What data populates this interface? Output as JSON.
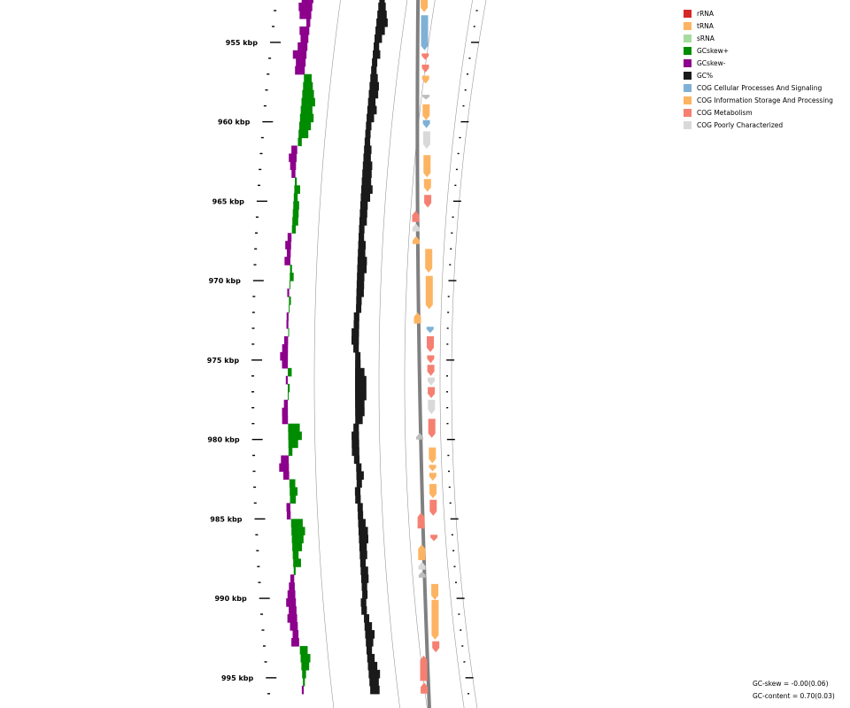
{
  "colors": {
    "rRNA": "#d62728",
    "tRNA": "#fdb462",
    "sRNA": "#a6dba0",
    "gcskew_plus": "#008c00",
    "gcskew_minus": "#8c008c",
    "gc": "#1a1a1a",
    "cog_cellular": "#7fb1d6",
    "cog_information": "#fdb462",
    "cog_metabolism": "#f58072",
    "cog_poor": "#d9d9d9",
    "unknown": "#bdbdbd",
    "backbone": "#808080",
    "guide": "#999999"
  },
  "legend": [
    {
      "label": "rRNA",
      "color": "#d62728"
    },
    {
      "label": "tRNA",
      "color": "#fdb462"
    },
    {
      "label": "sRNA",
      "color": "#a6dba0"
    },
    {
      "label": "GCskew+",
      "color": "#008c00"
    },
    {
      "label": "GCskew-",
      "color": "#8c008c"
    },
    {
      "label": "GC%",
      "color": "#1a1a1a"
    },
    {
      "label": "COG Cellular Processes And Signaling",
      "color": "#7fb1d6"
    },
    {
      "label": "COG Information Storage And Processing",
      "color": "#fdb462"
    },
    {
      "label": "COG Metabolism",
      "color": "#f58072"
    },
    {
      "label": "COG Poorly Characterized",
      "color": "#d9d9d9"
    }
  ],
  "stats": {
    "gc_skew": "GC-skew = -0.00(0.06)",
    "gc_content": "GC-content = 0.70(0.03)"
  },
  "chart_data": {
    "type": "genome-map",
    "position_range_kbp": [
      952,
      996
    ],
    "major_ticks_kbp": [
      955,
      960,
      965,
      970,
      975,
      980,
      985,
      990,
      995
    ],
    "tick_labels": [
      "955 kbp",
      "960 kbp",
      "965 kbp",
      "970 kbp",
      "975 kbp",
      "980 kbp",
      "985 kbp",
      "990 kbp",
      "995 kbp"
    ],
    "gc_skew_kbp": [
      952.0,
      952.5,
      953.0,
      953.5,
      954.0,
      954.5,
      955.0,
      955.5,
      956.0,
      956.5,
      957.0,
      957.5,
      958.0,
      958.5,
      959.0,
      959.5,
      960.0,
      960.5,
      961.0,
      961.5,
      962.0,
      962.5,
      963.0,
      963.5,
      964.0,
      964.5,
      965.0,
      965.5,
      966.0,
      966.5,
      967.0,
      967.5,
      968.0,
      968.5,
      969.0,
      969.5,
      970.0,
      970.5,
      971.0,
      971.5,
      972.0,
      972.5,
      973.0,
      973.5,
      974.0,
      974.5,
      975.0,
      975.5,
      976.0,
      976.5,
      977.0,
      977.5,
      978.0,
      978.5,
      979.0,
      979.5,
      980.0,
      980.5,
      981.0,
      981.5,
      982.0,
      982.5,
      983.0,
      983.5,
      984.0,
      984.5,
      985.0,
      985.5,
      986.0,
      986.5,
      987.0,
      987.5,
      988.0,
      988.5,
      989.0,
      989.5,
      990.0,
      990.5,
      991.0,
      991.5,
      992.0,
      992.5,
      993.0,
      993.5,
      994.0,
      994.5,
      995.0,
      995.5
    ],
    "gc_skew": [
      -0.06,
      -0.07,
      -0.06,
      -0.02,
      -0.05,
      -0.04,
      -0.05,
      -0.07,
      -0.05,
      -0.05,
      0.04,
      0.05,
      0.06,
      0.07,
      0.06,
      0.07,
      0.06,
      0.05,
      0.02,
      -0.03,
      -0.04,
      -0.03,
      -0.02,
      0.01,
      0.03,
      0.02,
      0.03,
      0.03,
      0.03,
      0.02,
      -0.02,
      -0.03,
      -0.02,
      -0.03,
      0.01,
      0.02,
      0.0,
      -0.01,
      0.01,
      0.0,
      -0.01,
      -0.01,
      0.0,
      -0.02,
      -0.03,
      -0.04,
      -0.03,
      0.02,
      -0.01,
      0.01,
      0.0,
      -0.02,
      -0.03,
      -0.03,
      0.06,
      0.07,
      0.05,
      0.02,
      -0.04,
      -0.05,
      -0.03,
      0.03,
      0.04,
      0.03,
      -0.02,
      -0.02,
      0.06,
      0.07,
      0.06,
      0.05,
      0.03,
      0.04,
      0.01,
      -0.02,
      -0.03,
      -0.04,
      -0.05,
      -0.04,
      -0.05,
      -0.04,
      -0.03,
      -0.04,
      0.04,
      0.05,
      0.04,
      0.02,
      0.01,
      -0.01
    ],
    "gc_content_kbp": [
      952.0,
      952.5,
      953.0,
      953.5,
      954.0,
      954.5,
      955.0,
      955.5,
      956.0,
      956.5,
      957.0,
      957.5,
      958.0,
      958.5,
      959.0,
      959.5,
      960.0,
      960.5,
      961.0,
      961.5,
      962.0,
      962.5,
      963.0,
      963.5,
      964.0,
      964.5,
      965.0,
      965.5,
      966.0,
      966.5,
      967.0,
      967.5,
      968.0,
      968.5,
      969.0,
      969.5,
      970.0,
      970.5,
      971.0,
      971.5,
      972.0,
      972.5,
      973.0,
      973.5,
      974.0,
      974.5,
      975.0,
      975.5,
      976.0,
      976.5,
      977.0,
      977.5,
      978.0,
      978.5,
      979.0,
      979.5,
      980.0,
      980.5,
      981.0,
      981.5,
      982.0,
      982.5,
      983.0,
      983.5,
      984.0,
      984.5,
      985.0,
      985.5,
      986.0,
      986.5,
      987.0,
      987.5,
      988.0,
      988.5,
      989.0,
      989.5,
      990.0,
      990.5,
      991.0,
      991.5,
      992.0,
      992.5,
      993.0,
      993.5,
      994.0,
      994.5,
      995.0,
      995.5
    ],
    "gc_content": [
      0.71,
      0.72,
      0.73,
      0.74,
      0.73,
      0.72,
      0.71,
      0.72,
      0.7,
      0.71,
      0.72,
      0.73,
      0.73,
      0.72,
      0.73,
      0.72,
      0.71,
      0.7,
      0.71,
      0.72,
      0.72,
      0.73,
      0.73,
      0.73,
      0.74,
      0.73,
      0.72,
      0.72,
      0.72,
      0.71,
      0.71,
      0.72,
      0.72,
      0.73,
      0.73,
      0.72,
      0.72,
      0.72,
      0.71,
      0.7,
      0.69,
      0.69,
      0.68,
      0.68,
      0.69,
      0.7,
      0.71,
      0.73,
      0.74,
      0.74,
      0.74,
      0.73,
      0.73,
      0.72,
      0.69,
      0.68,
      0.68,
      0.68,
      0.69,
      0.7,
      0.72,
      0.7,
      0.69,
      0.69,
      0.7,
      0.7,
      0.72,
      0.73,
      0.73,
      0.72,
      0.72,
      0.71,
      0.72,
      0.72,
      0.71,
      0.7,
      0.69,
      0.69,
      0.7,
      0.72,
      0.73,
      0.72,
      0.71,
      0.72,
      0.73,
      0.74,
      0.73,
      0.73
    ],
    "features": [
      {
        "strand": 1,
        "start": 952.0,
        "end": 953.1,
        "category": "cog_information"
      },
      {
        "strand": 1,
        "start": 953.3,
        "end": 955.5,
        "category": "cog_cellular"
      },
      {
        "strand": 1,
        "start": 955.7,
        "end": 956.1,
        "category": "cog_metabolism"
      },
      {
        "strand": 1,
        "start": 956.4,
        "end": 956.9,
        "category": "cog_metabolism"
      },
      {
        "strand": 1,
        "start": 957.1,
        "end": 957.6,
        "category": "cog_information"
      },
      {
        "strand": 1,
        "start": 958.3,
        "end": 958.6,
        "category": "unknown"
      },
      {
        "strand": 1,
        "start": 958.9,
        "end": 959.9,
        "category": "cog_information"
      },
      {
        "strand": 1,
        "start": 959.9,
        "end": 960.4,
        "category": "cog_cellular"
      },
      {
        "strand": 1,
        "start": 960.6,
        "end": 961.7,
        "category": "cog_poor"
      },
      {
        "strand": 1,
        "start": 962.1,
        "end": 963.5,
        "category": "cog_information"
      },
      {
        "strand": 1,
        "start": 963.6,
        "end": 964.4,
        "category": "cog_information"
      },
      {
        "strand": 1,
        "start": 964.6,
        "end": 965.4,
        "category": "cog_metabolism"
      },
      {
        "strand": -1,
        "start": 965.6,
        "end": 966.3,
        "category": "cog_metabolism"
      },
      {
        "strand": -1,
        "start": 966.4,
        "end": 966.9,
        "category": "cog_poor"
      },
      {
        "strand": -1,
        "start": 967.2,
        "end": 967.7,
        "category": "cog_information"
      },
      {
        "strand": 1,
        "start": 968.0,
        "end": 969.5,
        "category": "cog_information"
      },
      {
        "strand": 1,
        "start": 969.7,
        "end": 971.8,
        "category": "cog_information"
      },
      {
        "strand": -1,
        "start": 972.0,
        "end": 972.7,
        "category": "cog_information"
      },
      {
        "strand": 1,
        "start": 972.9,
        "end": 973.3,
        "category": "cog_cellular"
      },
      {
        "strand": 1,
        "start": 973.5,
        "end": 974.5,
        "category": "cog_metabolism"
      },
      {
        "strand": 1,
        "start": 974.7,
        "end": 975.2,
        "category": "cog_metabolism"
      },
      {
        "strand": 1,
        "start": 975.3,
        "end": 976.0,
        "category": "cog_metabolism"
      },
      {
        "strand": 1,
        "start": 976.1,
        "end": 976.6,
        "category": "cog_poor"
      },
      {
        "strand": 1,
        "start": 976.7,
        "end": 977.4,
        "category": "cog_metabolism"
      },
      {
        "strand": 1,
        "start": 977.5,
        "end": 978.4,
        "category": "cog_poor"
      },
      {
        "strand": 1,
        "start": 978.7,
        "end": 979.9,
        "category": "cog_metabolism"
      },
      {
        "strand": -1,
        "start": 979.6,
        "end": 980.0,
        "category": "unknown"
      },
      {
        "strand": 1,
        "start": 980.5,
        "end": 981.5,
        "category": "cog_information"
      },
      {
        "strand": 1,
        "start": 981.6,
        "end": 982.0,
        "category": "cog_information"
      },
      {
        "strand": 1,
        "start": 982.1,
        "end": 982.6,
        "category": "cog_information"
      },
      {
        "strand": 1,
        "start": 982.8,
        "end": 983.7,
        "category": "cog_information"
      },
      {
        "strand": 1,
        "start": 983.8,
        "end": 984.8,
        "category": "cog_metabolism"
      },
      {
        "strand": -1,
        "start": 984.6,
        "end": 985.6,
        "category": "cog_metabolism"
      },
      {
        "strand": 1,
        "start": 986.0,
        "end": 986.4,
        "category": "cog_metabolism"
      },
      {
        "strand": -1,
        "start": 986.6,
        "end": 987.6,
        "category": "cog_information"
      },
      {
        "strand": -1,
        "start": 987.7,
        "end": 988.2,
        "category": "cog_poor"
      },
      {
        "strand": -1,
        "start": 988.3,
        "end": 988.7,
        "category": "unknown"
      },
      {
        "strand": 1,
        "start": 989.1,
        "end": 990.1,
        "category": "cog_information"
      },
      {
        "strand": 1,
        "start": 990.1,
        "end": 992.6,
        "category": "cog_information"
      },
      {
        "strand": 1,
        "start": 992.7,
        "end": 993.4,
        "category": "cog_metabolism"
      },
      {
        "strand": -1,
        "start": 993.6,
        "end": 995.2,
        "category": "cog_metabolism"
      },
      {
        "strand": -1,
        "start": 995.3,
        "end": 996.0,
        "category": "cog_metabolism"
      }
    ]
  }
}
